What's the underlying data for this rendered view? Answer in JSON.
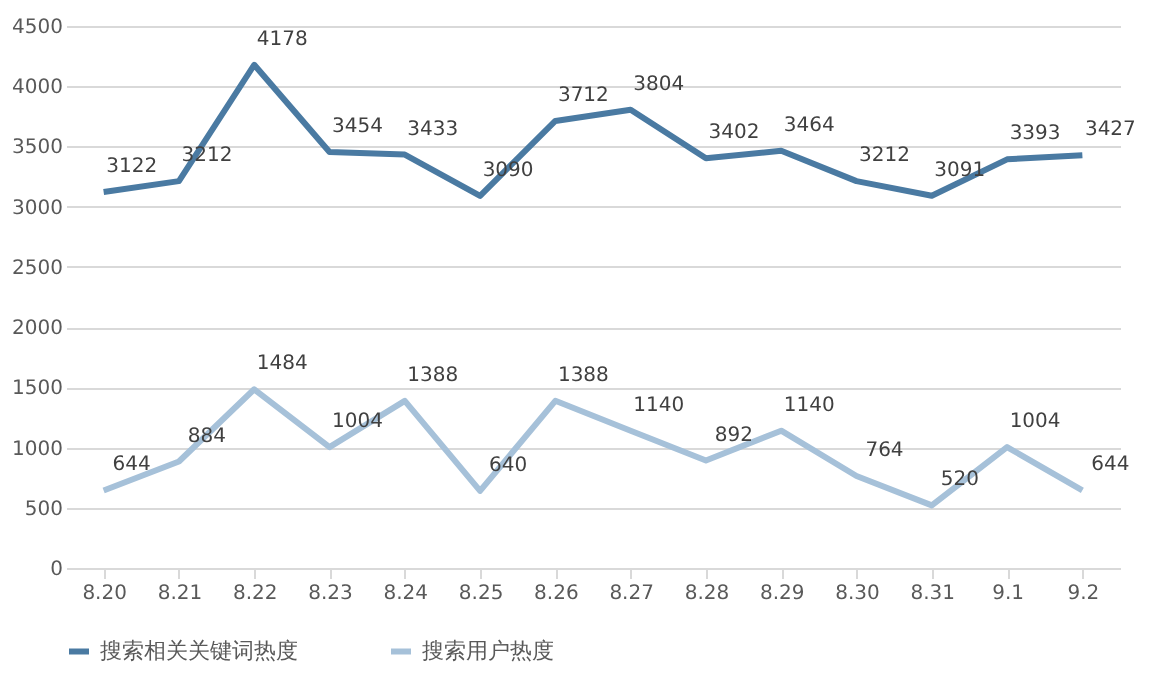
{
  "chart_data": {
    "type": "line",
    "categories": [
      "8.20",
      "8.21",
      "8.22",
      "8.23",
      "8.24",
      "8.25",
      "8.26",
      "8.27",
      "8.28",
      "8.29",
      "8.30",
      "8.31",
      "9.1",
      "9.2"
    ],
    "series": [
      {
        "name": "搜索相关关键词热度",
        "color": "#4a7aa2",
        "values": [
          3122,
          3212,
          4178,
          3454,
          3433,
          3090,
          3712,
          3804,
          3402,
          3464,
          3212,
          3091,
          3393,
          3427
        ]
      },
      {
        "name": "搜索用户热度",
        "color": "#a6c1d9",
        "values": [
          644,
          884,
          1484,
          1004,
          1388,
          640,
          1388,
          1140,
          892,
          1140,
          764,
          520,
          1004,
          644
        ]
      }
    ],
    "ylim": [
      0,
      4500
    ],
    "yticks": [
      0,
      500,
      1000,
      1500,
      2000,
      2500,
      3000,
      3500,
      4000,
      4500
    ],
    "grid": "y",
    "legend": "bottom",
    "data_labels": true,
    "marker": "none",
    "line_style": "solid"
  }
}
